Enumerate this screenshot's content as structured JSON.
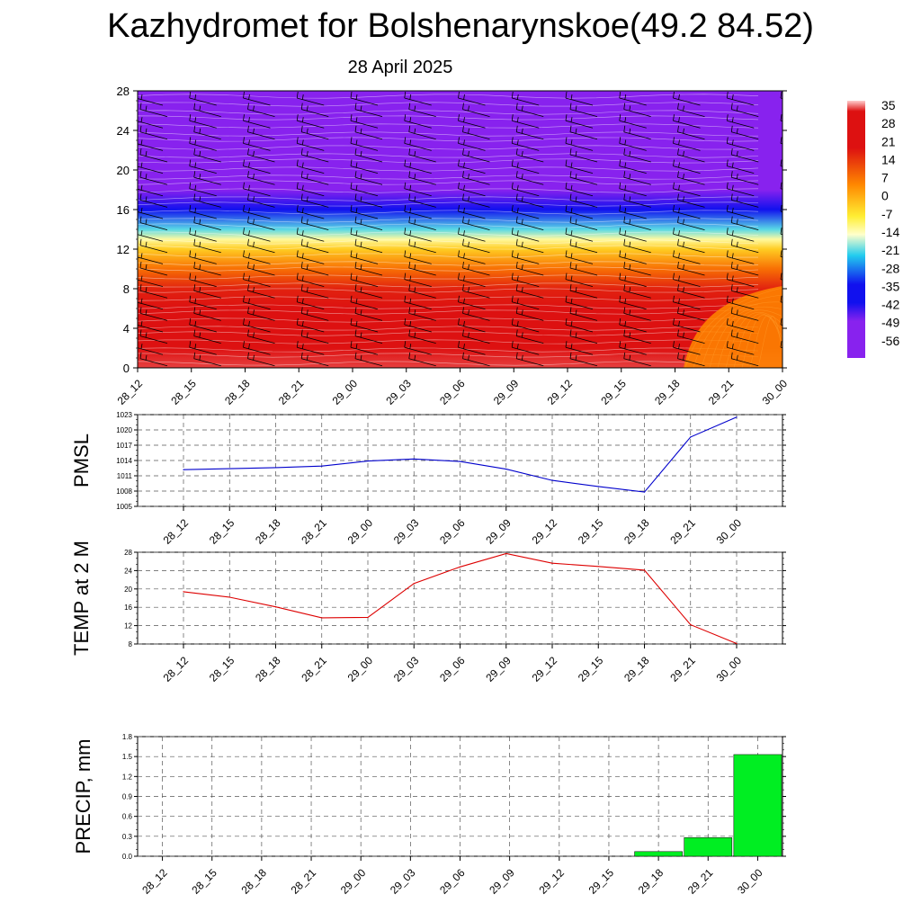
{
  "header": {
    "title": "Kazhydromet for Bolshenarynskoe(49.2 84.52)",
    "date": "28 April 2025"
  },
  "chart_data": [
    {
      "type": "heatmap",
      "title": "",
      "x_labels": [
        "28_12",
        "28_15",
        "28_18",
        "28_21",
        "29_00",
        "29_03",
        "29_06",
        "29_09",
        "29_12",
        "29_15",
        "29_18",
        "29_21",
        "30_00"
      ],
      "y_ticks": [
        "0",
        "4",
        "8",
        "12",
        "16",
        "20",
        "24",
        "28"
      ],
      "ylim": [
        0,
        28
      ],
      "colorbar_labels": [
        "35",
        "28",
        "21",
        "14",
        "7",
        "0",
        "-7",
        "-14",
        "-21",
        "-28",
        "-35",
        "-42",
        "-49",
        "-56"
      ],
      "colorbar_range": [
        -63,
        35
      ],
      "temperature_profile": [
        {
          "level": 0,
          "value": 32
        },
        {
          "level": 2,
          "value": 30
        },
        {
          "level": 4,
          "value": 27
        },
        {
          "level": 6,
          "value": 22
        },
        {
          "level": 8,
          "value": 15
        },
        {
          "level": 10,
          "value": 6
        },
        {
          "level": 12,
          "value": -5
        },
        {
          "level": 13,
          "value": -14
        },
        {
          "level": 14,
          "value": -22
        },
        {
          "level": 16,
          "value": -38
        },
        {
          "level": 18,
          "value": -58
        },
        {
          "level": 20,
          "value": -52
        },
        {
          "level": 22,
          "value": -50
        },
        {
          "level": 24,
          "value": -52
        },
        {
          "level": 28,
          "value": -55
        }
      ],
      "overlay": "wind barbs",
      "colors": {
        "scale_top": "#ffcccc",
        "red": "#dd1111",
        "orange": "#ff8800",
        "yellow": "#ffee33",
        "pale": "#ffffcc",
        "cyan": "#22ccee",
        "blue": "#1111ee",
        "violet": "#8822ee"
      }
    },
    {
      "type": "line",
      "ylabel": "PMSL",
      "categories": [
        "28_12",
        "28_15",
        "28_18",
        "28_21",
        "29_00",
        "29_03",
        "29_06",
        "29_09",
        "29_12",
        "29_15",
        "29_18",
        "29_21",
        "30_00"
      ],
      "values": [
        1012.2,
        1012.4,
        1012.6,
        1012.9,
        1013.9,
        1014.3,
        1013.8,
        1012.3,
        1010.1,
        1008.9,
        1007.8,
        1018.6,
        1022.5
      ],
      "ylim": [
        1005,
        1023
      ],
      "y_ticks": [
        "1005",
        "1008",
        "1011",
        "1014",
        "1017",
        "1020",
        "1023"
      ],
      "color": "#0000cc"
    },
    {
      "type": "line",
      "ylabel": "TEMP at 2 M",
      "categories": [
        "28_12",
        "28_15",
        "28_18",
        "28_21",
        "29_00",
        "29_03",
        "29_06",
        "29_09",
        "29_12",
        "29_15",
        "29_18",
        "29_21",
        "30_00"
      ],
      "values": [
        19.4,
        18.2,
        16.1,
        13.7,
        13.8,
        21.2,
        24.8,
        27.7,
        25.6,
        24.9,
        24.1,
        12.2,
        8.1
      ],
      "ylim": [
        8,
        28
      ],
      "y_ticks": [
        "8",
        "12",
        "16",
        "20",
        "24",
        "28"
      ],
      "color": "#dd0000"
    },
    {
      "type": "bar",
      "ylabel": "PRECIP, mm",
      "categories": [
        "28_12",
        "28_15",
        "28_18",
        "28_21",
        "29_00",
        "29_03",
        "29_06",
        "29_09",
        "29_12",
        "29_15",
        "29_18",
        "29_21",
        "30_00"
      ],
      "values": [
        0,
        0,
        0,
        0,
        0,
        0,
        0,
        0,
        0,
        0,
        0.07,
        0.28,
        1.53
      ],
      "ylim": [
        0,
        1.8
      ],
      "y_ticks": [
        "0.0",
        "0.3",
        "0.6",
        "0.9",
        "1.2",
        "1.5",
        "1.8"
      ],
      "color": "#00ee22"
    }
  ]
}
